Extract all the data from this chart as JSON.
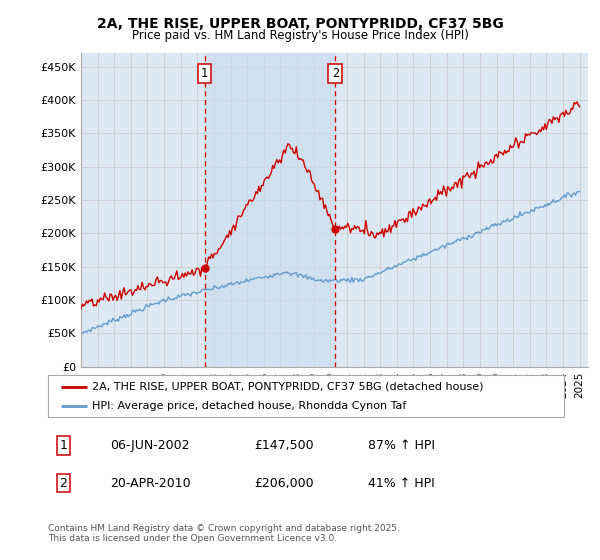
{
  "title1": "2A, THE RISE, UPPER BOAT, PONTYPRIDD, CF37 5BG",
  "title2": "Price paid vs. HM Land Registry's House Price Index (HPI)",
  "ylabel_ticks": [
    "£0",
    "£50K",
    "£100K",
    "£150K",
    "£200K",
    "£250K",
    "£300K",
    "£350K",
    "£400K",
    "£450K"
  ],
  "ytick_values": [
    0,
    50000,
    100000,
    150000,
    200000,
    250000,
    300000,
    350000,
    400000,
    450000
  ],
  "ylim": [
    0,
    470000
  ],
  "xlim_start": 1995.0,
  "xlim_end": 2025.5,
  "marker1_x": 2002.43,
  "marker1_y": 147500,
  "marker2_x": 2010.3,
  "marker2_y": 206000,
  "marker1_label": "1",
  "marker2_label": "2",
  "line1_color": "#cc0000",
  "line2_color": "#6699cc",
  "grid_color": "#cccccc",
  "bg_color": "#dce9f5",
  "shade_color": "#ccdded",
  "legend_line1": "2A, THE RISE, UPPER BOAT, PONTYPRIDD, CF37 5BG (detached house)",
  "legend_line2": "HPI: Average price, detached house, Rhondda Cynon Taf",
  "table_row1_num": "1",
  "table_row1_date": "06-JUN-2002",
  "table_row1_price": "£147,500",
  "table_row1_hpi": "87% ↑ HPI",
  "table_row2_num": "2",
  "table_row2_date": "20-APR-2010",
  "table_row2_price": "£206,000",
  "table_row2_hpi": "41% ↑ HPI",
  "footnote": "Contains HM Land Registry data © Crown copyright and database right 2025.\nThis data is licensed under the Open Government Licence v3.0."
}
